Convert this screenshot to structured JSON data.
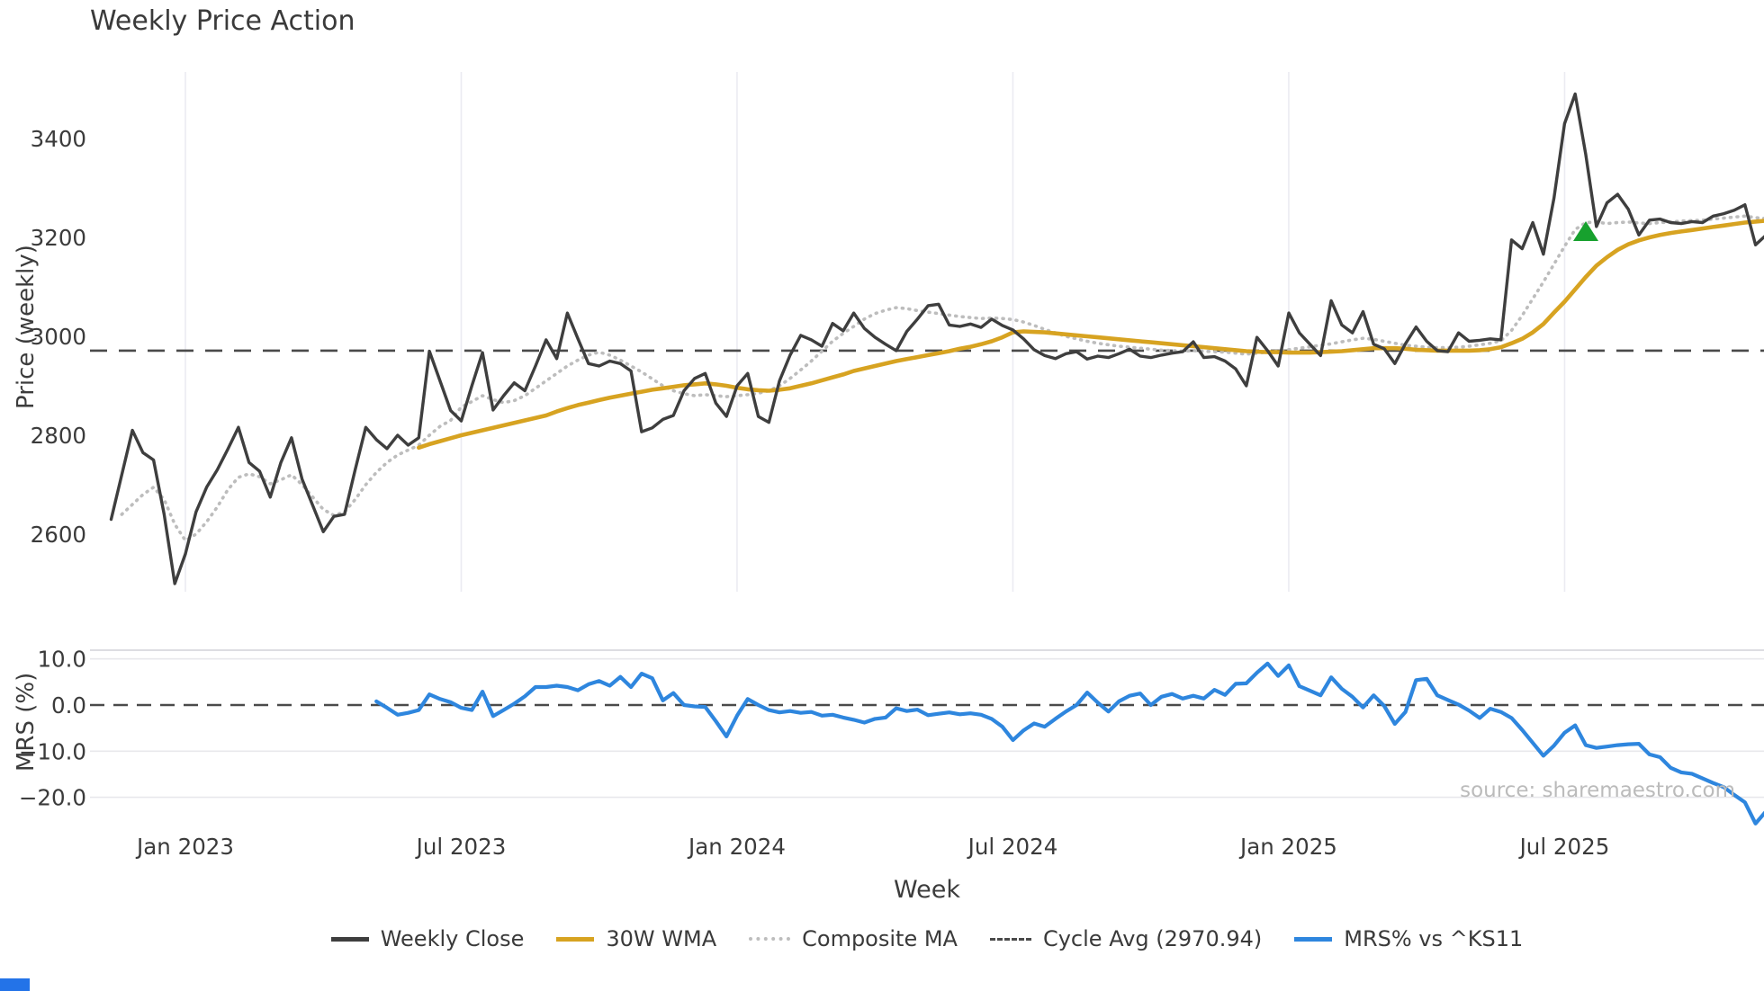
{
  "header": {
    "title": "Weekly Price Action"
  },
  "source_note": "source: sharemaestro.com",
  "colors": {
    "weekly_close": "#3e3e3e",
    "wma_30w": "#d7a321",
    "composite_ma": "#bdbdbd",
    "cycle_avg": "#4a4a4a",
    "mrs_line": "#2e86de",
    "buy_marker": "#17a12e",
    "grid_top": "#ebebf2",
    "grid_bottom": "#e8e8ec",
    "corner_mark": "#2373e8"
  },
  "legend": {
    "items": [
      {
        "label": "Weekly Close",
        "color": "#3e3e3e",
        "line_style": "solid"
      },
      {
        "label": "30W WMA",
        "color": "#d7a321",
        "line_style": "solid"
      },
      {
        "label": "Composite MA",
        "color": "#bdbdbd",
        "line_style": "dotted"
      },
      {
        "label": "Cycle Avg (2970.94)",
        "color": "#4a4a4a",
        "line_style": "dashed"
      },
      {
        "label": "MRS% vs ^KS11",
        "color": "#2e86de",
        "line_style": "solid"
      }
    ]
  },
  "chart_data": [
    {
      "type": "line",
      "panel": "price",
      "title": "Weekly Price Action",
      "ylabel": "Price (weekly)",
      "ylim": [
        2450,
        3560
      ],
      "yticks": [
        {
          "v": 3400,
          "label": "3400"
        },
        {
          "v": 3200,
          "label": "3200"
        },
        {
          "v": 3000,
          "label": "3000"
        },
        {
          "v": 2800,
          "label": "2800"
        },
        {
          "v": 2600,
          "label": "2600"
        }
      ],
      "x_ticks": [
        {
          "week": 7,
          "label": "Jan 2023"
        },
        {
          "week": 33,
          "label": "Jul 2023"
        },
        {
          "week": 59,
          "label": "Jan 2024"
        },
        {
          "week": 85,
          "label": "Jul 2024"
        },
        {
          "week": 111,
          "label": "Jan 2025"
        },
        {
          "week": 137,
          "label": "Jul 2025"
        }
      ],
      "grid": "vertical",
      "legend_position": "bottom-center",
      "cycle_avg": 2970.94,
      "series": [
        {
          "name": "Weekly Close",
          "color": "#3e3e3e",
          "style": "solid",
          "start_week": 0,
          "values": [
            2630,
            2720,
            2810,
            2765,
            2750,
            2640,
            2500,
            2560,
            2645,
            2695,
            2730,
            2772,
            2816,
            2745,
            2727,
            2675,
            2745,
            2795,
            2711,
            2658,
            2605,
            2636,
            2640,
            2730,
            2816,
            2791,
            2773,
            2800,
            2780,
            2795,
            2970,
            2910,
            2850,
            2829,
            2900,
            2967,
            2851,
            2880,
            2906,
            2890,
            2940,
            2993,
            2955,
            3047,
            2995,
            2945,
            2940,
            2950,
            2945,
            2930,
            2807,
            2815,
            2832,
            2840,
            2890,
            2915,
            2925,
            2865,
            2838,
            2900,
            2925,
            2838,
            2826,
            2910,
            2962,
            3002,
            2993,
            2980,
            3026,
            3011,
            3047,
            3016,
            2998,
            2984,
            2971,
            3010,
            3035,
            3062,
            3065,
            3023,
            3020,
            3025,
            3018,
            3035,
            3022,
            3013,
            2995,
            2973,
            2961,
            2955,
            2965,
            2969,
            2954,
            2960,
            2957,
            2965,
            2974,
            2960,
            2957,
            2962,
            2966,
            2969,
            2989,
            2957,
            2959,
            2950,
            2934,
            2900,
            2998,
            2971,
            2940,
            3047,
            3007,
            2984,
            2961,
            3072,
            3023,
            3007,
            3050,
            2984,
            2975,
            2945,
            2985,
            3019,
            2990,
            2971,
            2969,
            3007,
            2990,
            2992,
            2995,
            2993,
            3195,
            3177,
            3230,
            3166,
            3280,
            3430,
            3490,
            3367,
            3222,
            3270,
            3287,
            3257,
            3205,
            3235,
            3237,
            3230,
            3228,
            3232,
            3230,
            3243,
            3248,
            3255,
            3266,
            3185,
            3205
          ]
        },
        {
          "name": "30W WMA",
          "color": "#d7a321",
          "style": "solid",
          "start_week": 29,
          "values": [
            2775,
            2782,
            2788,
            2794,
            2800,
            2805,
            2810,
            2815,
            2820,
            2825,
            2830,
            2835,
            2840,
            2848,
            2855,
            2861,
            2866,
            2871,
            2876,
            2880,
            2884,
            2888,
            2892,
            2895,
            2898,
            2901,
            2903,
            2905,
            2903,
            2900,
            2896,
            2893,
            2891,
            2890,
            2892,
            2895,
            2900,
            2905,
            2911,
            2917,
            2923,
            2930,
            2935,
            2940,
            2945,
            2950,
            2954,
            2958,
            2962,
            2966,
            2970,
            2975,
            2979,
            2984,
            2990,
            2998,
            3008,
            3010,
            3009,
            3008,
            3006,
            3004,
            3002,
            3000,
            2998,
            2996,
            2994,
            2992,
            2990,
            2988,
            2986,
            2984,
            2982,
            2980,
            2978,
            2976,
            2974,
            2972,
            2970,
            2969,
            2968,
            2968,
            2967,
            2967,
            2967,
            2968,
            2969,
            2970,
            2972,
            2974,
            2976,
            2976,
            2976,
            2975,
            2973,
            2972,
            2971,
            2971,
            2971,
            2971,
            2972,
            2974,
            2978,
            2986,
            2995,
            3008,
            3025,
            3048,
            3070,
            3095,
            3120,
            3143,
            3160,
            3175,
            3186,
            3194,
            3200,
            3205,
            3209,
            3212,
            3215,
            3218,
            3221,
            3224,
            3227,
            3230,
            3232,
            3234
          ]
        },
        {
          "name": "Composite MA",
          "color": "#bdbdbd",
          "style": "dotted",
          "start_week": 1,
          "values": [
            2640,
            2660,
            2680,
            2695,
            2670,
            2620,
            2587,
            2600,
            2625,
            2655,
            2690,
            2715,
            2722,
            2716,
            2702,
            2710,
            2720,
            2700,
            2675,
            2650,
            2638,
            2645,
            2670,
            2700,
            2725,
            2745,
            2760,
            2770,
            2780,
            2800,
            2818,
            2830,
            2857,
            2868,
            2880,
            2872,
            2866,
            2870,
            2880,
            2895,
            2910,
            2925,
            2940,
            2952,
            2962,
            2968,
            2962,
            2952,
            2940,
            2928,
            2914,
            2900,
            2890,
            2884,
            2880,
            2882,
            2880,
            2878,
            2880,
            2882,
            2885,
            2890,
            2900,
            2915,
            2932,
            2950,
            2970,
            2990,
            3006,
            3020,
            3035,
            3046,
            3053,
            3058,
            3056,
            3052,
            3049,
            3046,
            3043,
            3040,
            3038,
            3036,
            3037,
            3036,
            3034,
            3029,
            3022,
            3014,
            3007,
            3000,
            2995,
            2990,
            2986,
            2983,
            2980,
            2978,
            2976,
            2974,
            2972,
            2971,
            2970,
            2971,
            2970,
            2969,
            2968,
            2966,
            2964,
            2966,
            2968,
            2970,
            2973,
            2976,
            2979,
            2982,
            2985,
            2989,
            2993,
            2996,
            2994,
            2990,
            2986,
            2982,
            2980,
            2978,
            2977,
            2977,
            2978,
            2980,
            2983,
            2986,
            2991,
            3012,
            3042,
            3076,
            3110,
            3146,
            3182,
            3216,
            3230,
            3231,
            3228,
            3230,
            3231,
            3229,
            3228,
            3230,
            3231,
            3233,
            3234,
            3235,
            3237,
            3239,
            3241,
            3243,
            3240,
            3238
          ]
        },
        {
          "name": "Cycle Avg (2970.94)",
          "color": "#4a4a4a",
          "style": "dashed",
          "value": 2970.94
        }
      ],
      "marker": {
        "name": "buy-signal",
        "symbol": "triangle-up",
        "color": "#17a12e",
        "week": 139,
        "price": 3211
      }
    },
    {
      "type": "line",
      "panel": "mrs",
      "ylabel": "MRS (%)",
      "xlabel": "Week",
      "ylim": [
        -27,
        12
      ],
      "yticks": [
        {
          "v": 10,
          "label": "10.0"
        },
        {
          "v": 0,
          "label": "0.0"
        },
        {
          "v": -10,
          "label": "−10.0"
        },
        {
          "v": -20,
          "label": "−20.0"
        }
      ],
      "zero_line": 0.0,
      "grid": "horizontal",
      "series": [
        {
          "name": "MRS% vs ^KS11",
          "color": "#2e86de",
          "style": "solid",
          "start_week": 25,
          "values": [
            0.8,
            -0.6,
            -2.1,
            -1.7,
            -1.1,
            2.3,
            1.3,
            0.6,
            -0.6,
            -1.1,
            2.9,
            -2.4,
            -1.1,
            0.3,
            1.9,
            3.9,
            3.9,
            4.2,
            3.9,
            3.2,
            4.5,
            5.2,
            4.2,
            6.1,
            3.9,
            6.8,
            5.8,
            1.0,
            2.6,
            0.0,
            -0.3,
            -0.4,
            -3.5,
            -6.8,
            -2.3,
            1.3,
            0.0,
            -1.1,
            -1.6,
            -1.3,
            -1.7,
            -1.5,
            -2.3,
            -2.1,
            -2.7,
            -3.2,
            -3.8,
            -3.0,
            -2.7,
            -0.7,
            -1.3,
            -1.0,
            -2.2,
            -1.9,
            -1.6,
            -2.0,
            -1.8,
            -2.1,
            -3.0,
            -4.7,
            -7.6,
            -5.5,
            -4.0,
            -4.7,
            -3.0,
            -1.4,
            0.0,
            2.7,
            0.5,
            -1.4,
            0.8,
            2.0,
            2.5,
            0.0,
            1.8,
            2.4,
            1.4,
            2.0,
            1.4,
            3.3,
            2.2,
            4.6,
            4.7,
            7.0,
            9.0,
            6.3,
            8.6,
            4.1,
            3.1,
            2.1,
            6.0,
            3.5,
            1.8,
            -0.5,
            2.1,
            -0.2,
            -4.1,
            -1.5,
            5.4,
            5.7,
            2.1,
            1.1,
            0.1,
            -1.2,
            -2.8,
            -0.8,
            -1.5,
            -2.8,
            -5.4,
            -8.2,
            -11.0,
            -8.8,
            -6.0,
            -4.4,
            -8.7,
            -9.3,
            -9.0,
            -8.7,
            -8.5,
            -8.4,
            -10.7,
            -11.3,
            -13.6,
            -14.6,
            -14.9,
            -15.9,
            -16.9,
            -17.8,
            -19.5,
            -21.1,
            -25.7,
            -23.0
          ]
        }
      ]
    }
  ]
}
